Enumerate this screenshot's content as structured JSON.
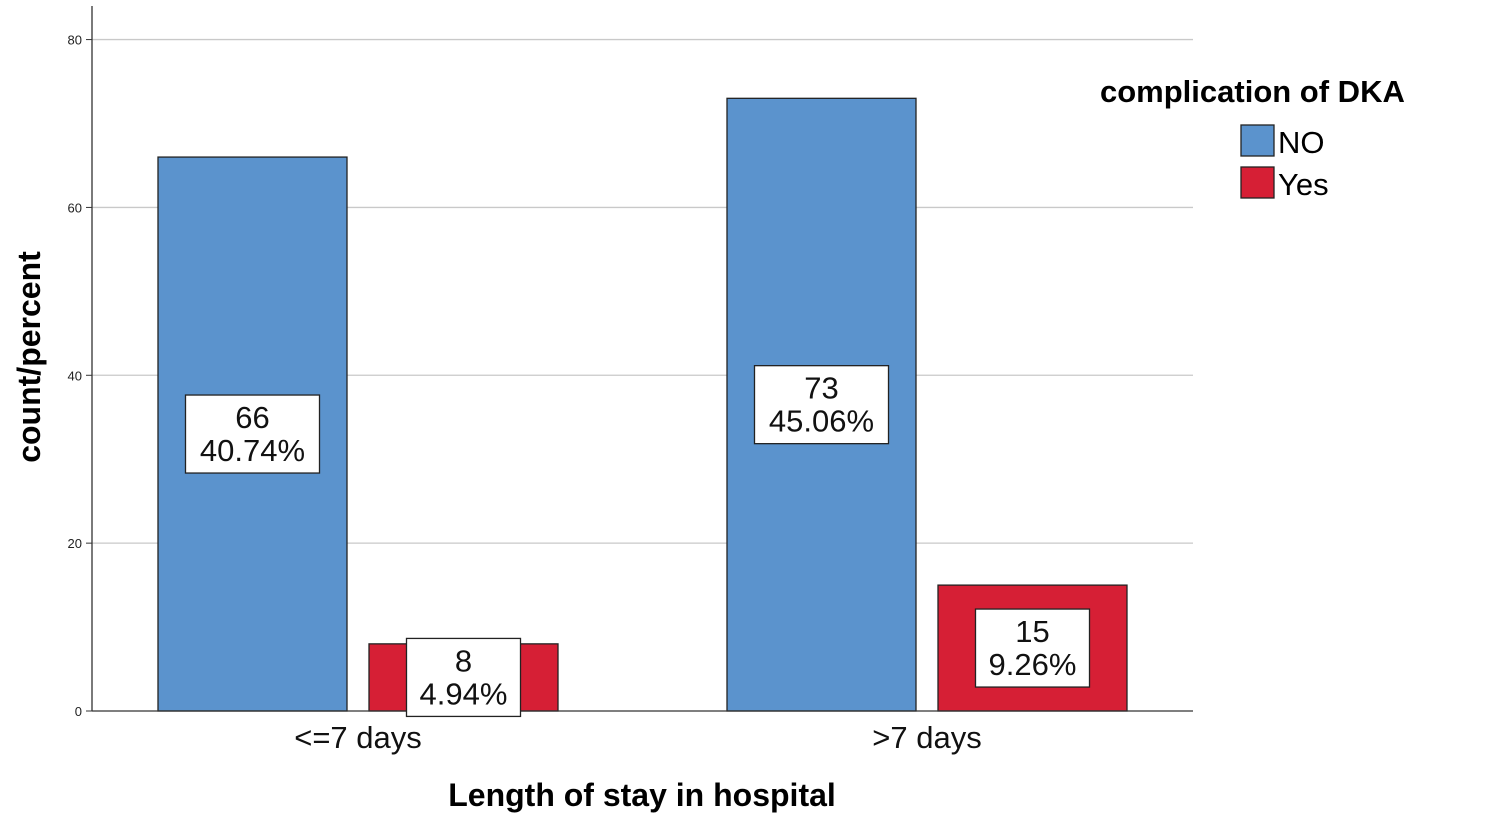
{
  "chart_data": {
    "type": "bar",
    "categories": [
      "<=7 days",
      ">7 days"
    ],
    "series": [
      {
        "name": "NO",
        "values": [
          66,
          73
        ],
        "percent_labels": [
          "40.74%",
          "45.06%"
        ],
        "color": "#5b93cd"
      },
      {
        "name": "Yes",
        "values": [
          8,
          15
        ],
        "percent_labels": [
          "4.94%",
          "9.26%"
        ],
        "color": "#d61f35"
      }
    ],
    "xlabel": "Length of stay in hospital",
    "ylabel": "count/percent",
    "ylim": [
      0,
      84
    ],
    "yticks": [
      0,
      20,
      40,
      60,
      80
    ],
    "grid": true,
    "legend": {
      "title": "complication of DKA",
      "placement": "right"
    }
  }
}
